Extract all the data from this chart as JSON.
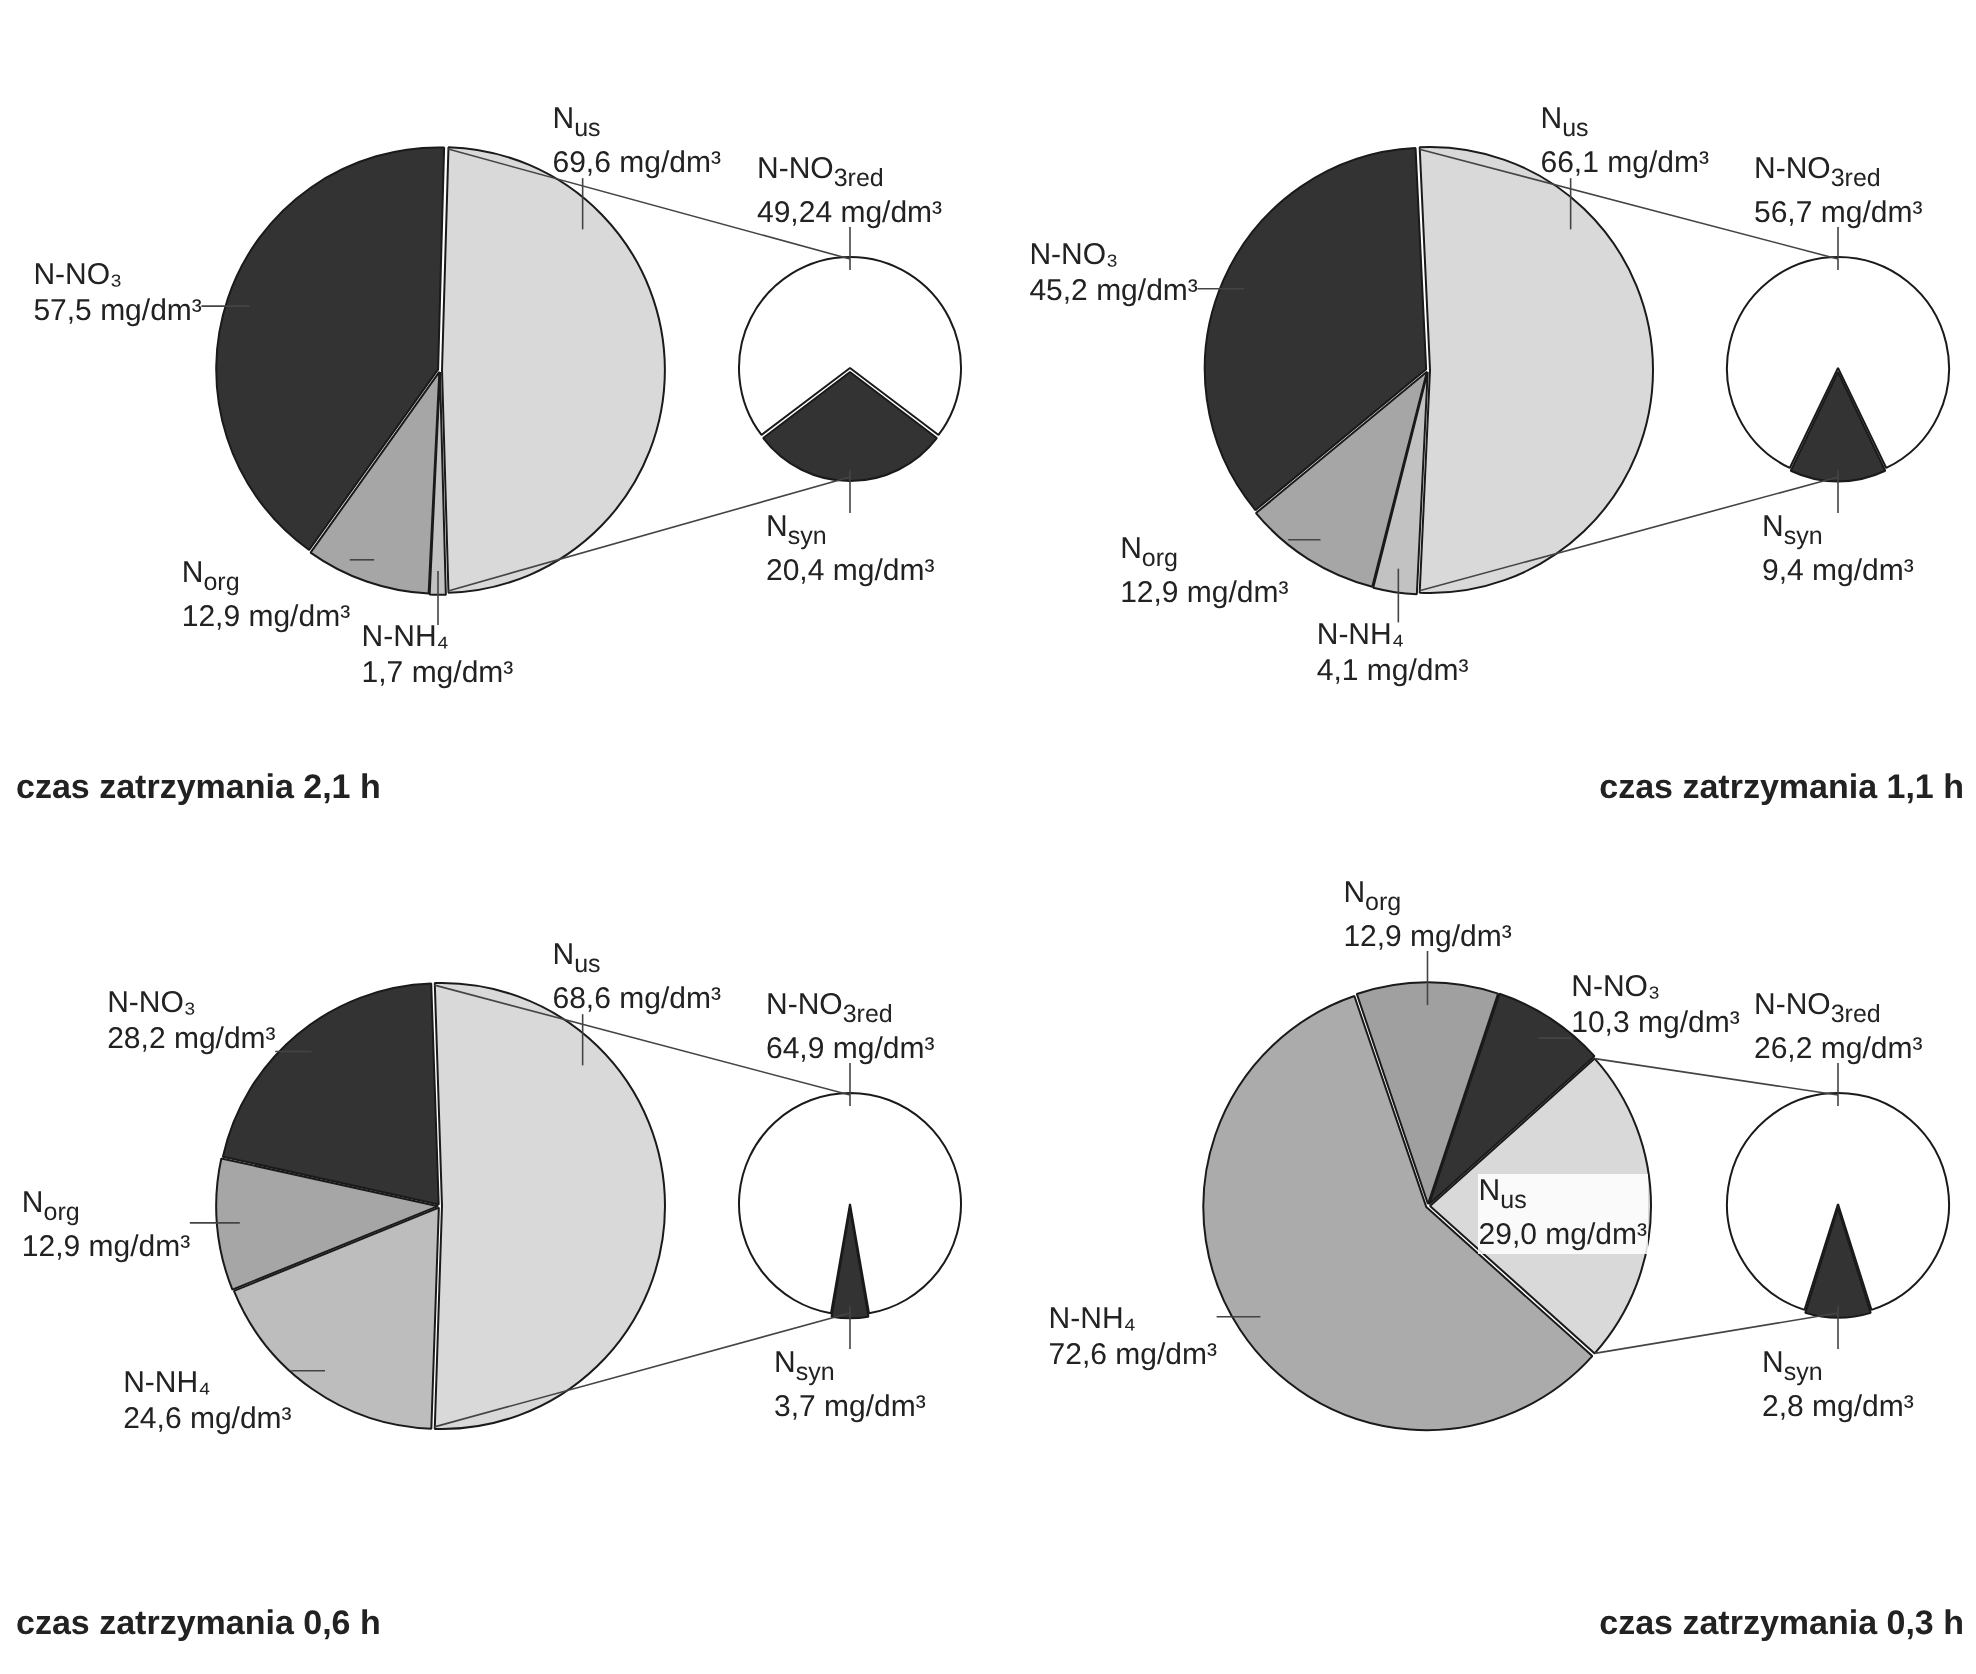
{
  "chart_data": [
    {
      "type": "pie",
      "title": "czas zatrzymania 2,1 h",
      "categories": [
        "N$_{us}$",
        "N-NH₄",
        "N$_{org}$",
        "N-NO₃"
      ],
      "values": [
        69.6,
        1.7,
        12.9,
        57.5
      ],
      "colors": [
        "#d9d9d9",
        "#c2c2c2",
        "#a6a6a6",
        "#333333"
      ],
      "value_labels": [
        "69,6 mg/dm³",
        "1,7 mg/dm³",
        "12,9 mg/dm³",
        "57,5 mg/dm³"
      ]
    },
    {
      "type": "pie",
      "categories": [
        "N-NO$_{3red}$",
        "N$_{syn}$"
      ],
      "values": [
        49.24,
        20.4
      ],
      "colors": [
        "#ffffff",
        "#333333"
      ],
      "value_labels": [
        "49,24 mg/dm³",
        "20,4 mg/dm³"
      ]
    },
    {
      "type": "pie",
      "title": "czas zatrzymania 1,1 h",
      "categories": [
        "N$_{us}$",
        "N-NH₄",
        "N$_{org}$",
        "N-NO₃"
      ],
      "values": [
        66.1,
        4.1,
        12.9,
        45.2
      ],
      "colors": [
        "#d9d9d9",
        "#c2c2c2",
        "#a6a6a6",
        "#333333"
      ],
      "value_labels": [
        "66,1 mg/dm³",
        "4,1 mg/dm³",
        "12,9 mg/dm³",
        "45,2 mg/dm³"
      ]
    },
    {
      "type": "pie",
      "categories": [
        "N-NO$_{3red}$",
        "N$_{syn}$"
      ],
      "values": [
        56.7,
        9.4
      ],
      "colors": [
        "#ffffff",
        "#333333"
      ],
      "value_labels": [
        "56,7 mg/dm³",
        "9,4 mg/dm³"
      ]
    },
    {
      "type": "pie",
      "title": "czas zatrzymania 0,6 h",
      "categories": [
        "N$_{us}$",
        "N-NH₄",
        "N$_{org}$",
        "N-NO₃"
      ],
      "values": [
        68.6,
        24.6,
        12.9,
        28.2
      ],
      "colors": [
        "#d9d9d9",
        "#bdbdbd",
        "#a6a6a6",
        "#333333"
      ],
      "value_labels": [
        "68,6 mg/dm³",
        "24,6 mg/dm³",
        "12,9 mg/dm³",
        "28,2 mg/dm³"
      ]
    },
    {
      "type": "pie",
      "categories": [
        "N-NO$_{3red}$",
        "N$_{syn}$"
      ],
      "values": [
        64.9,
        3.7
      ],
      "colors": [
        "#ffffff",
        "#333333"
      ],
      "value_labels": [
        "64,9 mg/dm³",
        "3,7 mg/dm³"
      ]
    },
    {
      "type": "pie",
      "title": "czas zatrzymania 0,3 h",
      "categories": [
        "N$_{us}$",
        "N-NH₄",
        "N$_{org}$",
        "N-NO₃"
      ],
      "values": [
        29.0,
        72.6,
        12.9,
        10.3
      ],
      "colors": [
        "#d9d9d9",
        "#ababab",
        "#a0a0a0",
        "#333333"
      ],
      "value_labels": [
        "29,0 mg/dm³",
        "72,6 mg/dm³",
        "12,9 mg/dm³",
        "10,3 mg/dm³"
      ]
    },
    {
      "type": "pie",
      "categories": [
        "N-NO$_{3red}$",
        "N$_{syn}$"
      ],
      "values": [
        26.2,
        2.8
      ],
      "colors": [
        "#ffffff",
        "#333333"
      ],
      "value_labels": [
        "26,2 mg/dm³",
        "2,8 mg/dm³"
      ]
    }
  ]
}
